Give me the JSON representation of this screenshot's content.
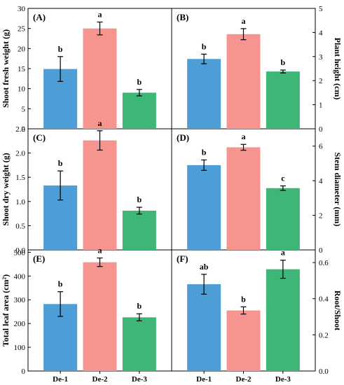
{
  "categories": [
    "De-1",
    "De-2",
    "De-3"
  ],
  "colors": {
    "De-1": "#4d9ed6",
    "De-2": "#f69490",
    "De-3": "#3eb677",
    "axis": "#000000"
  },
  "chart_data": [
    {
      "type": "bar",
      "panel": "(A)",
      "ylabel": "Shoot fresh weight (g)",
      "ylim": [
        0,
        30
      ],
      "yticks": [
        "0",
        "5",
        "10",
        "15",
        "20",
        "25",
        "30"
      ],
      "yaxis_side": "left",
      "categories": [
        "De-1",
        "De-2",
        "De-3"
      ],
      "values": [
        14.9,
        25.0,
        9.0
      ],
      "errors": [
        3.1,
        1.6,
        0.8
      ],
      "significance": [
        "b",
        "a",
        "b"
      ]
    },
    {
      "type": "bar",
      "panel": "(B)",
      "ylabel": "Plant height (cm)",
      "ylim": [
        0,
        5
      ],
      "yticks": [
        "0",
        "1",
        "2",
        "3",
        "4",
        "5"
      ],
      "yaxis_side": "right",
      "categories": [
        "De-1",
        "De-2",
        "De-3"
      ],
      "values": [
        2.9,
        3.93,
        2.38
      ],
      "errors": [
        0.2,
        0.23,
        0.06
      ],
      "significance": [
        "b",
        "a",
        "b"
      ]
    },
    {
      "type": "bar",
      "panel": "(C)",
      "ylabel": "Shoot dry weight (g)",
      "ylim": [
        0,
        2.5
      ],
      "yticks": [
        "0.0",
        "0.5",
        "1.0",
        "1.5",
        "2.0",
        "2.5"
      ],
      "yaxis_side": "left",
      "categories": [
        "De-1",
        "De-2",
        "De-3"
      ],
      "values": [
        1.33,
        2.26,
        0.81
      ],
      "errors": [
        0.3,
        0.2,
        0.07
      ],
      "significance": [
        "b",
        "a",
        "b"
      ]
    },
    {
      "type": "bar",
      "panel": "(D)",
      "ylabel": "Stem diameter (mm)",
      "ylim": [
        0,
        7
      ],
      "yticks": [
        "0",
        "2",
        "4",
        "6"
      ],
      "yaxis_side": "right",
      "categories": [
        "De-1",
        "De-2",
        "De-3"
      ],
      "values": [
        4.9,
        5.93,
        3.57
      ],
      "errors": [
        0.3,
        0.17,
        0.13
      ],
      "significance": [
        "b",
        "a",
        "c"
      ]
    },
    {
      "type": "bar",
      "panel": "(E)",
      "ylabel": "Total leaf area (cm²)",
      "ylim": [
        0,
        510
      ],
      "yticks": [
        "0",
        "100",
        "200",
        "300",
        "400",
        "500"
      ],
      "yaxis_side": "left",
      "categories": [
        "De-1",
        "De-2",
        "De-3"
      ],
      "values": [
        282,
        458,
        226
      ],
      "errors": [
        52,
        18,
        15
      ],
      "significance": [
        "b",
        "a",
        "b"
      ]
    },
    {
      "type": "bar",
      "panel": "(F)",
      "ylabel": "Root/Shoot",
      "ylim": [
        0,
        0.67
      ],
      "yticks": [
        "0.0",
        "0.2",
        "0.4",
        "0.6"
      ],
      "yaxis_side": "right",
      "categories": [
        "De-1",
        "De-2",
        "De-3"
      ],
      "values": [
        0.48,
        0.335,
        0.563
      ],
      "errors": [
        0.055,
        0.02,
        0.05
      ],
      "significance": [
        "ab",
        "b",
        "a"
      ]
    }
  ]
}
